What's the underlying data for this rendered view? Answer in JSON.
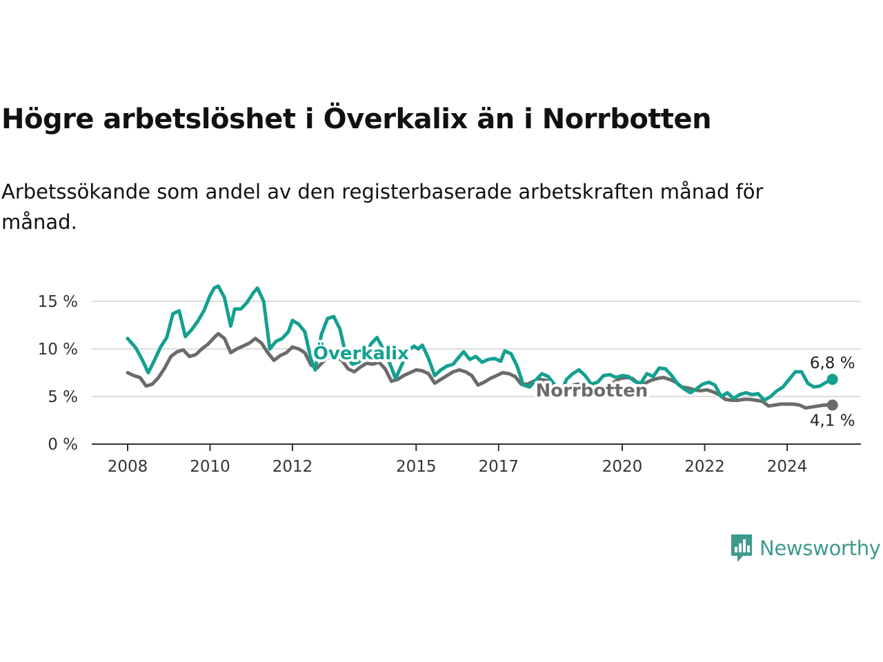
{
  "header": {
    "title": "Högre arbetslöshet i Överkalix än i Norrbotten",
    "subtitle": "Arbetssökande som andel av den registerbaserade arbetskraften månad för månad."
  },
  "brand": {
    "name": "Newsworthy",
    "icon": "newsworthy-logo-icon",
    "color": "#3e9a8d"
  },
  "chart_data": {
    "type": "line",
    "title": "Högre arbetslöshet i Överkalix än i Norrbotten",
    "subtitle": "Arbetssökande som andel av den registerbaserade arbetskraften månad för månad.",
    "xlabel": "",
    "ylabel": "",
    "xlim": [
      2007.5,
      2025.9
    ],
    "ylim": [
      0,
      15.5
    ],
    "x_ticks": [
      {
        "value": 2008,
        "label": "2008"
      },
      {
        "value": 2010,
        "label": "2010"
      },
      {
        "value": 2012,
        "label": "2012"
      },
      {
        "value": 2015,
        "label": "2015"
      },
      {
        "value": 2017,
        "label": "2017"
      },
      {
        "value": 2020,
        "label": "2020"
      },
      {
        "value": 2022,
        "label": "2022"
      },
      {
        "value": 2024,
        "label": "2024"
      }
    ],
    "y_ticks": [
      {
        "value": 0,
        "label": "0 %"
      },
      {
        "value": 5,
        "label": "5 %"
      },
      {
        "value": 10,
        "label": "10 %"
      },
      {
        "value": 15,
        "label": "15 %"
      }
    ],
    "grid": true,
    "legend": "inline labels",
    "series": [
      {
        "name": "Överkalix",
        "color": "#14a090",
        "end_label": "6,8 %",
        "points": [
          [
            2008.0,
            11.1
          ],
          [
            2008.2,
            10.1
          ],
          [
            2008.35,
            8.9
          ],
          [
            2008.5,
            7.5
          ],
          [
            2008.65,
            8.8
          ],
          [
            2008.8,
            10.2
          ],
          [
            2008.95,
            11.2
          ],
          [
            2009.1,
            13.7
          ],
          [
            2009.25,
            14.0
          ],
          [
            2009.4,
            11.3
          ],
          [
            2009.55,
            12.0
          ],
          [
            2009.7,
            12.9
          ],
          [
            2009.85,
            14.0
          ],
          [
            2010.0,
            15.6
          ],
          [
            2010.1,
            16.4
          ],
          [
            2010.2,
            16.6
          ],
          [
            2010.35,
            15.4
          ],
          [
            2010.5,
            12.4
          ],
          [
            2010.6,
            14.2
          ],
          [
            2010.75,
            14.2
          ],
          [
            2010.9,
            14.9
          ],
          [
            2011.05,
            15.9
          ],
          [
            2011.15,
            16.4
          ],
          [
            2011.3,
            15.0
          ],
          [
            2011.45,
            10.0
          ],
          [
            2011.6,
            10.8
          ],
          [
            2011.75,
            11.1
          ],
          [
            2011.9,
            11.8
          ],
          [
            2012.0,
            13.0
          ],
          [
            2012.15,
            12.6
          ],
          [
            2012.3,
            11.8
          ],
          [
            2012.45,
            8.9
          ],
          [
            2012.55,
            7.8
          ],
          [
            2012.7,
            11.5
          ],
          [
            2012.85,
            13.2
          ],
          [
            2013.0,
            13.4
          ],
          [
            2013.15,
            12.1
          ],
          [
            2013.3,
            9.3
          ],
          [
            2013.45,
            8.4
          ],
          [
            2013.6,
            8.6
          ],
          [
            2013.75,
            9.2
          ],
          [
            2013.9,
            10.5
          ],
          [
            2014.05,
            11.2
          ],
          [
            2014.2,
            10.0
          ],
          [
            2014.35,
            8.6
          ],
          [
            2014.5,
            6.9
          ],
          [
            2014.65,
            8.3
          ],
          [
            2014.8,
            9.8
          ],
          [
            2014.95,
            10.3
          ],
          [
            2015.05,
            10.0
          ],
          [
            2015.15,
            10.4
          ],
          [
            2015.3,
            9.0
          ],
          [
            2015.45,
            7.2
          ],
          [
            2015.6,
            7.8
          ],
          [
            2015.75,
            8.2
          ],
          [
            2015.9,
            8.4
          ],
          [
            2016.05,
            9.2
          ],
          [
            2016.15,
            9.7
          ],
          [
            2016.3,
            8.9
          ],
          [
            2016.45,
            9.2
          ],
          [
            2016.6,
            8.6
          ],
          [
            2016.75,
            8.9
          ],
          [
            2016.9,
            9.0
          ],
          [
            2017.05,
            8.7
          ],
          [
            2017.15,
            9.8
          ],
          [
            2017.3,
            9.5
          ],
          [
            2017.45,
            8.2
          ],
          [
            2017.6,
            6.2
          ],
          [
            2017.75,
            6.0
          ],
          [
            2017.9,
            6.7
          ],
          [
            2018.05,
            7.4
          ],
          [
            2018.2,
            7.1
          ],
          [
            2018.35,
            6.3
          ],
          [
            2018.5,
            5.3
          ],
          [
            2018.65,
            6.8
          ],
          [
            2018.8,
            7.4
          ],
          [
            2018.95,
            7.8
          ],
          [
            2019.1,
            7.2
          ],
          [
            2019.25,
            6.3
          ],
          [
            2019.4,
            6.5
          ],
          [
            2019.55,
            7.2
          ],
          [
            2019.7,
            7.3
          ],
          [
            2019.85,
            7.0
          ],
          [
            2020.0,
            7.2
          ],
          [
            2020.15,
            7.1
          ],
          [
            2020.3,
            6.6
          ],
          [
            2020.45,
            6.4
          ],
          [
            2020.6,
            7.4
          ],
          [
            2020.75,
            7.1
          ],
          [
            2020.9,
            8.0
          ],
          [
            2021.05,
            7.9
          ],
          [
            2021.2,
            7.2
          ],
          [
            2021.35,
            6.3
          ],
          [
            2021.5,
            5.8
          ],
          [
            2021.65,
            5.4
          ],
          [
            2021.8,
            5.8
          ],
          [
            2021.95,
            6.3
          ],
          [
            2022.1,
            6.5
          ],
          [
            2022.25,
            6.2
          ],
          [
            2022.4,
            5.0
          ],
          [
            2022.55,
            5.4
          ],
          [
            2022.7,
            4.8
          ],
          [
            2022.85,
            5.2
          ],
          [
            2023.0,
            5.4
          ],
          [
            2023.15,
            5.2
          ],
          [
            2023.3,
            5.3
          ],
          [
            2023.45,
            4.6
          ],
          [
            2023.6,
            5.0
          ],
          [
            2023.75,
            5.6
          ],
          [
            2023.9,
            6.0
          ],
          [
            2024.05,
            6.8
          ],
          [
            2024.2,
            7.6
          ],
          [
            2024.35,
            7.6
          ],
          [
            2024.5,
            6.4
          ],
          [
            2024.65,
            6.0
          ],
          [
            2024.8,
            6.1
          ],
          [
            2024.95,
            6.5
          ],
          [
            2025.1,
            6.8
          ]
        ]
      },
      {
        "name": "Norrbotten",
        "color": "#6b6b6b",
        "end_label": "4,1 %",
        "points": [
          [
            2008.0,
            7.5
          ],
          [
            2008.15,
            7.2
          ],
          [
            2008.3,
            7.0
          ],
          [
            2008.45,
            6.1
          ],
          [
            2008.6,
            6.3
          ],
          [
            2008.75,
            7.0
          ],
          [
            2008.9,
            8.0
          ],
          [
            2009.05,
            9.2
          ],
          [
            2009.2,
            9.7
          ],
          [
            2009.35,
            9.9
          ],
          [
            2009.5,
            9.2
          ],
          [
            2009.65,
            9.4
          ],
          [
            2009.8,
            10.0
          ],
          [
            2009.95,
            10.5
          ],
          [
            2010.1,
            11.2
          ],
          [
            2010.2,
            11.6
          ],
          [
            2010.35,
            11.1
          ],
          [
            2010.5,
            9.6
          ],
          [
            2010.65,
            10.0
          ],
          [
            2010.8,
            10.3
          ],
          [
            2010.95,
            10.6
          ],
          [
            2011.1,
            11.1
          ],
          [
            2011.25,
            10.6
          ],
          [
            2011.4,
            9.6
          ],
          [
            2011.55,
            8.8
          ],
          [
            2011.7,
            9.3
          ],
          [
            2011.85,
            9.6
          ],
          [
            2012.0,
            10.2
          ],
          [
            2012.15,
            10.0
          ],
          [
            2012.3,
            9.6
          ],
          [
            2012.45,
            8.3
          ],
          [
            2012.6,
            8.0
          ],
          [
            2012.75,
            8.7
          ],
          [
            2012.9,
            9.3
          ],
          [
            2013.05,
            9.2
          ],
          [
            2013.2,
            8.8
          ],
          [
            2013.35,
            7.9
          ],
          [
            2013.5,
            7.6
          ],
          [
            2013.65,
            8.1
          ],
          [
            2013.8,
            8.5
          ],
          [
            2013.95,
            8.4
          ],
          [
            2014.1,
            8.6
          ],
          [
            2014.25,
            7.9
          ],
          [
            2014.4,
            6.6
          ],
          [
            2014.55,
            6.8
          ],
          [
            2014.7,
            7.2
          ],
          [
            2014.85,
            7.5
          ],
          [
            2015.0,
            7.8
          ],
          [
            2015.15,
            7.7
          ],
          [
            2015.3,
            7.4
          ],
          [
            2015.45,
            6.4
          ],
          [
            2015.6,
            6.8
          ],
          [
            2015.75,
            7.2
          ],
          [
            2015.9,
            7.6
          ],
          [
            2016.05,
            7.8
          ],
          [
            2016.2,
            7.6
          ],
          [
            2016.35,
            7.2
          ],
          [
            2016.5,
            6.2
          ],
          [
            2016.65,
            6.5
          ],
          [
            2016.8,
            6.9
          ],
          [
            2016.95,
            7.2
          ],
          [
            2017.1,
            7.5
          ],
          [
            2017.25,
            7.4
          ],
          [
            2017.4,
            7.1
          ],
          [
            2017.55,
            6.3
          ],
          [
            2017.7,
            6.3
          ],
          [
            2017.85,
            6.6
          ],
          [
            2018.0,
            6.8
          ],
          [
            2018.15,
            6.7
          ],
          [
            2018.3,
            6.3
          ],
          [
            2018.45,
            5.7
          ],
          [
            2018.6,
            5.8
          ],
          [
            2018.75,
            6.1
          ],
          [
            2018.9,
            6.3
          ],
          [
            2019.05,
            6.3
          ],
          [
            2019.2,
            6.0
          ],
          [
            2019.35,
            5.6
          ],
          [
            2019.5,
            5.9
          ],
          [
            2019.65,
            6.2
          ],
          [
            2019.8,
            6.5
          ],
          [
            2019.95,
            6.9
          ],
          [
            2020.1,
            7.0
          ],
          [
            2020.25,
            6.9
          ],
          [
            2020.4,
            6.3
          ],
          [
            2020.55,
            6.4
          ],
          [
            2020.7,
            6.7
          ],
          [
            2020.85,
            6.9
          ],
          [
            2021.0,
            7.0
          ],
          [
            2021.15,
            6.8
          ],
          [
            2021.3,
            6.5
          ],
          [
            2021.45,
            6.0
          ],
          [
            2021.6,
            5.9
          ],
          [
            2021.75,
            5.7
          ],
          [
            2021.9,
            5.6
          ],
          [
            2022.05,
            5.7
          ],
          [
            2022.2,
            5.5
          ],
          [
            2022.35,
            5.2
          ],
          [
            2022.5,
            4.7
          ],
          [
            2022.65,
            4.6
          ],
          [
            2022.8,
            4.6
          ],
          [
            2022.95,
            4.7
          ],
          [
            2023.1,
            4.7
          ],
          [
            2023.25,
            4.6
          ],
          [
            2023.4,
            4.5
          ],
          [
            2023.55,
            4.0
          ],
          [
            2023.7,
            4.1
          ],
          [
            2023.85,
            4.2
          ],
          [
            2024.0,
            4.2
          ],
          [
            2024.15,
            4.2
          ],
          [
            2024.3,
            4.1
          ],
          [
            2024.45,
            3.8
          ],
          [
            2024.6,
            3.9
          ],
          [
            2024.75,
            4.0
          ],
          [
            2024.9,
            4.1
          ],
          [
            2025.1,
            4.1
          ]
        ]
      }
    ]
  }
}
